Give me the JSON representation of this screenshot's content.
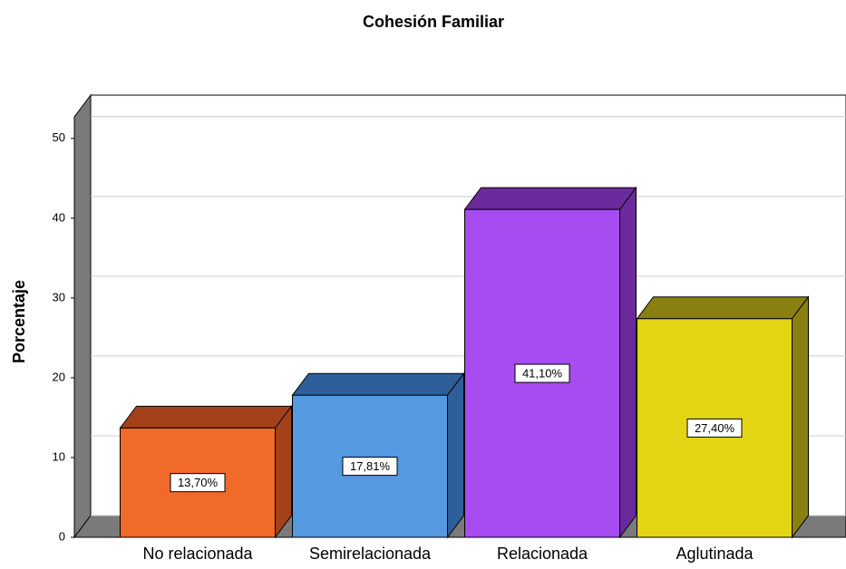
{
  "chart_data": {
    "type": "bar3d",
    "title": "Cohesión Familiar",
    "y_label": "Porcentaje",
    "categories": [
      "No relacionada",
      "Semirelacionada",
      "Relacionada",
      "Aglutinada"
    ],
    "values": [
      13.7,
      17.81,
      41.1,
      27.4
    ],
    "value_labels": [
      "13,70%",
      "17,81%",
      "41,10%",
      "27,40%"
    ],
    "colors": [
      "#f26a2a",
      "#5599e0",
      "#a64cf0",
      "#e3d514"
    ],
    "side_colors": [
      "#a3421a",
      "#2f5f9a",
      "#6b2a9c",
      "#8a8010"
    ],
    "ylim": [
      0,
      52.7
    ],
    "yticks": [
      0,
      10,
      20,
      30,
      40,
      50
    ],
    "grid": true
  }
}
